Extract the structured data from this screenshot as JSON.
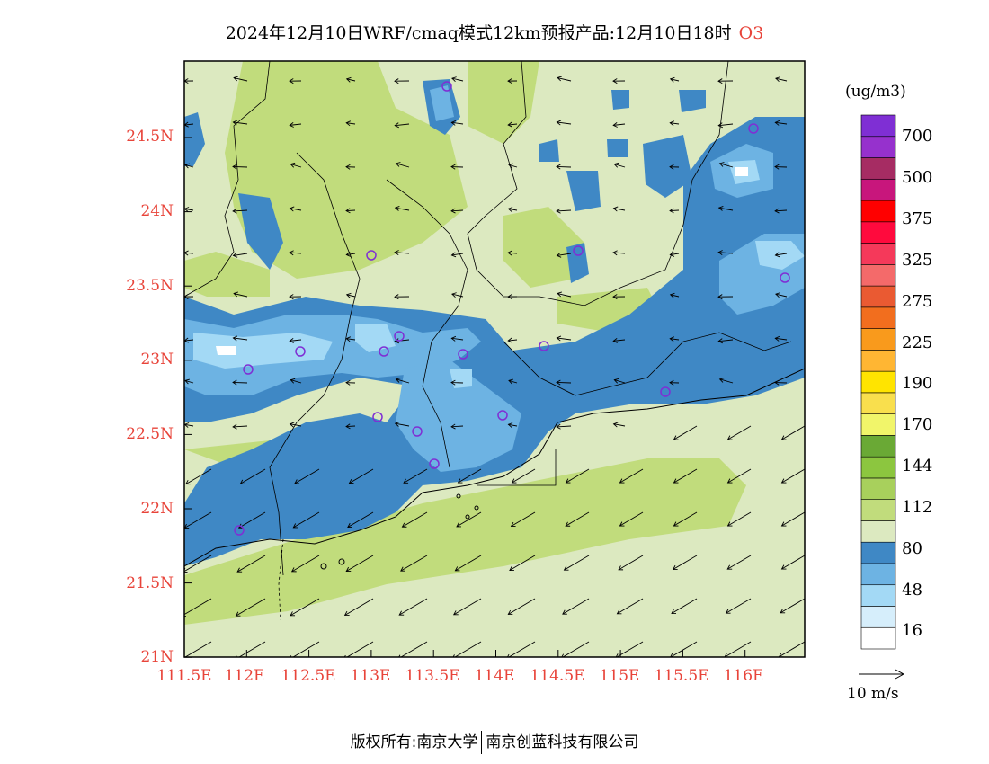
{
  "title": {
    "text": "2024年12月10日WRF/cmaq模式12km预报产品:12月10日18时",
    "species": "O3"
  },
  "map": {
    "lat_ticks": [
      "24.5N",
      "24N",
      "23.5N",
      "23N",
      "22.5N",
      "22N",
      "21.5N",
      "21N"
    ],
    "lon_ticks": [
      "111.5E",
      "112E",
      "112.5E",
      "113E",
      "113.5E",
      "114E",
      "114.5E",
      "115E",
      "115.5E",
      "116E"
    ]
  },
  "colorbar": {
    "unit": "(ug/m3)",
    "labels": [
      "700",
      "500",
      "375",
      "325",
      "275",
      "225",
      "190",
      "170",
      "144",
      "112",
      "80",
      "48",
      "16"
    ],
    "colors": [
      "#ffffff",
      "#d6eefb",
      "#a3d9f5",
      "#6db3e3",
      "#3f88c5",
      "#dce9c0",
      "#c1dc7c",
      "#a8d05c",
      "#8cc63f",
      "#6aa935",
      "#f1f56a",
      "#f9df4d",
      "#ffe400",
      "#ffb633",
      "#f99a1c",
      "#f26e1e",
      "#ea5a32",
      "#f46a6a",
      "#f5395a",
      "#ff0a3d",
      "#ff0000",
      "#c8167c",
      "#a62c63",
      "#9631cd",
      "#7f2fd4"
    ]
  },
  "wind_reference": {
    "label": "10 m/s"
  },
  "footer": {
    "left": "版权所有:南京大学",
    "right": "南京创蓝科技有限公司"
  }
}
